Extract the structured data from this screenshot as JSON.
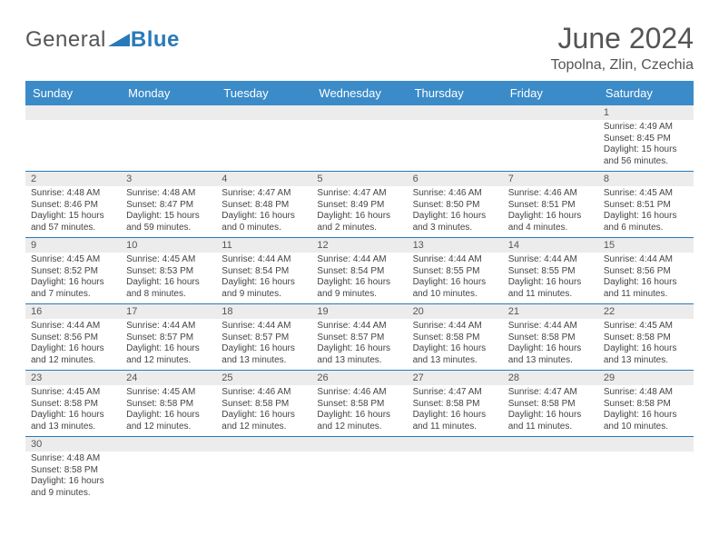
{
  "logo": {
    "part1": "General",
    "part2": "Blue"
  },
  "title": "June 2024",
  "location": "Topolna, Zlin, Czechia",
  "colors": {
    "header_bg": "#3b8bc9",
    "header_text": "#ffffff",
    "daynum_bg": "#ececec",
    "border": "#2a7ab9",
    "text": "#444444",
    "title_text": "#555555",
    "logo_accent": "#2a7ab9"
  },
  "day_labels": [
    "Sunday",
    "Monday",
    "Tuesday",
    "Wednesday",
    "Thursday",
    "Friday",
    "Saturday"
  ],
  "weeks": [
    [
      null,
      null,
      null,
      null,
      null,
      null,
      {
        "n": "1",
        "sunrise": "4:49 AM",
        "sunset": "8:45 PM",
        "daylight": "15 hours and 56 minutes."
      }
    ],
    [
      {
        "n": "2",
        "sunrise": "4:48 AM",
        "sunset": "8:46 PM",
        "daylight": "15 hours and 57 minutes."
      },
      {
        "n": "3",
        "sunrise": "4:48 AM",
        "sunset": "8:47 PM",
        "daylight": "15 hours and 59 minutes."
      },
      {
        "n": "4",
        "sunrise": "4:47 AM",
        "sunset": "8:48 PM",
        "daylight": "16 hours and 0 minutes."
      },
      {
        "n": "5",
        "sunrise": "4:47 AM",
        "sunset": "8:49 PM",
        "daylight": "16 hours and 2 minutes."
      },
      {
        "n": "6",
        "sunrise": "4:46 AM",
        "sunset": "8:50 PM",
        "daylight": "16 hours and 3 minutes."
      },
      {
        "n": "7",
        "sunrise": "4:46 AM",
        "sunset": "8:51 PM",
        "daylight": "16 hours and 4 minutes."
      },
      {
        "n": "8",
        "sunrise": "4:45 AM",
        "sunset": "8:51 PM",
        "daylight": "16 hours and 6 minutes."
      }
    ],
    [
      {
        "n": "9",
        "sunrise": "4:45 AM",
        "sunset": "8:52 PM",
        "daylight": "16 hours and 7 minutes."
      },
      {
        "n": "10",
        "sunrise": "4:45 AM",
        "sunset": "8:53 PM",
        "daylight": "16 hours and 8 minutes."
      },
      {
        "n": "11",
        "sunrise": "4:44 AM",
        "sunset": "8:54 PM",
        "daylight": "16 hours and 9 minutes."
      },
      {
        "n": "12",
        "sunrise": "4:44 AM",
        "sunset": "8:54 PM",
        "daylight": "16 hours and 9 minutes."
      },
      {
        "n": "13",
        "sunrise": "4:44 AM",
        "sunset": "8:55 PM",
        "daylight": "16 hours and 10 minutes."
      },
      {
        "n": "14",
        "sunrise": "4:44 AM",
        "sunset": "8:55 PM",
        "daylight": "16 hours and 11 minutes."
      },
      {
        "n": "15",
        "sunrise": "4:44 AM",
        "sunset": "8:56 PM",
        "daylight": "16 hours and 11 minutes."
      }
    ],
    [
      {
        "n": "16",
        "sunrise": "4:44 AM",
        "sunset": "8:56 PM",
        "daylight": "16 hours and 12 minutes."
      },
      {
        "n": "17",
        "sunrise": "4:44 AM",
        "sunset": "8:57 PM",
        "daylight": "16 hours and 12 minutes."
      },
      {
        "n": "18",
        "sunrise": "4:44 AM",
        "sunset": "8:57 PM",
        "daylight": "16 hours and 13 minutes."
      },
      {
        "n": "19",
        "sunrise": "4:44 AM",
        "sunset": "8:57 PM",
        "daylight": "16 hours and 13 minutes."
      },
      {
        "n": "20",
        "sunrise": "4:44 AM",
        "sunset": "8:58 PM",
        "daylight": "16 hours and 13 minutes."
      },
      {
        "n": "21",
        "sunrise": "4:44 AM",
        "sunset": "8:58 PM",
        "daylight": "16 hours and 13 minutes."
      },
      {
        "n": "22",
        "sunrise": "4:45 AM",
        "sunset": "8:58 PM",
        "daylight": "16 hours and 13 minutes."
      }
    ],
    [
      {
        "n": "23",
        "sunrise": "4:45 AM",
        "sunset": "8:58 PM",
        "daylight": "16 hours and 13 minutes."
      },
      {
        "n": "24",
        "sunrise": "4:45 AM",
        "sunset": "8:58 PM",
        "daylight": "16 hours and 12 minutes."
      },
      {
        "n": "25",
        "sunrise": "4:46 AM",
        "sunset": "8:58 PM",
        "daylight": "16 hours and 12 minutes."
      },
      {
        "n": "26",
        "sunrise": "4:46 AM",
        "sunset": "8:58 PM",
        "daylight": "16 hours and 12 minutes."
      },
      {
        "n": "27",
        "sunrise": "4:47 AM",
        "sunset": "8:58 PM",
        "daylight": "16 hours and 11 minutes."
      },
      {
        "n": "28",
        "sunrise": "4:47 AM",
        "sunset": "8:58 PM",
        "daylight": "16 hours and 11 minutes."
      },
      {
        "n": "29",
        "sunrise": "4:48 AM",
        "sunset": "8:58 PM",
        "daylight": "16 hours and 10 minutes."
      }
    ],
    [
      {
        "n": "30",
        "sunrise": "4:48 AM",
        "sunset": "8:58 PM",
        "daylight": "16 hours and 9 minutes."
      },
      null,
      null,
      null,
      null,
      null,
      null
    ]
  ],
  "labels": {
    "sunrise": "Sunrise:",
    "sunset": "Sunset:",
    "daylight": "Daylight:"
  }
}
